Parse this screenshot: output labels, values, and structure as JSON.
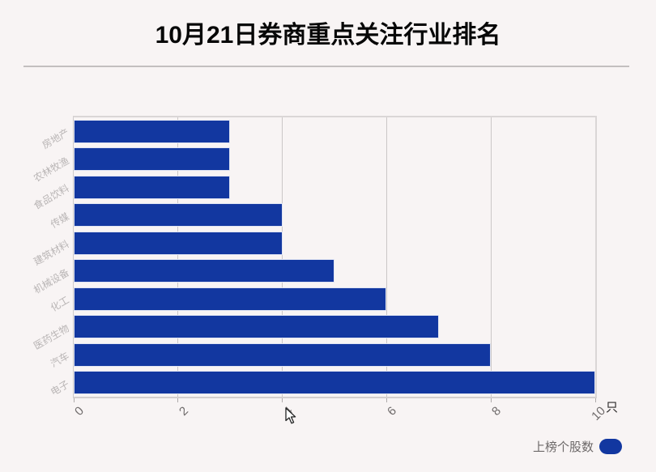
{
  "axis_unit": "只",
  "legend": {
    "label": "上榜个股数"
  },
  "colors": {
    "bar": "#1237a0",
    "background": "#f8f4f4",
    "grid": "#cbc7c7",
    "category_label": "#b9b5b5",
    "tick_label": "#6f6b6b"
  },
  "chart_data": {
    "type": "bar",
    "orientation": "horizontal",
    "title": "10月21日券商重点关注行业排名",
    "series_name": "上榜个股数",
    "categories": [
      "房地产",
      "农林牧渔",
      "食品饮料",
      "传媒",
      "建筑材料",
      "机械设备",
      "化工",
      "医药生物",
      "汽车",
      "电子"
    ],
    "values": [
      3,
      3,
      3,
      4,
      4,
      5,
      6,
      7,
      8,
      10
    ],
    "xlabel": "只",
    "xlim": [
      0,
      10
    ],
    "xticks": [
      0,
      2,
      4,
      6,
      8,
      10
    ],
    "grid": true,
    "legend_position": "bottom-right"
  }
}
